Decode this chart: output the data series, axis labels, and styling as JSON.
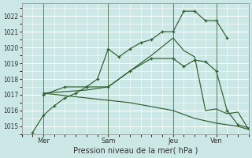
{
  "title": "",
  "xlabel": "Pression niveau de la mer( hPa )",
  "ylim": [
    1014.5,
    1022.8
  ],
  "yticks": [
    1015,
    1016,
    1017,
    1018,
    1019,
    1020,
    1021,
    1022
  ],
  "bg_color": "#cce8e6",
  "grid_color": "#ffffff",
  "line_color": "#2d5e2d",
  "xtick_labels": [
    "Mer",
    "Sam",
    "Jeu",
    "Ven"
  ],
  "xtick_positions": [
    1,
    4,
    7,
    9
  ],
  "xlim": [
    0,
    10.5
  ],
  "lines": [
    {
      "x": [
        0.5,
        1.0,
        1.5,
        2.0,
        2.5,
        3.0,
        3.5,
        4.0,
        4.5,
        5.0,
        5.5,
        6.0,
        6.5,
        7.0,
        7.5,
        8.0,
        8.5,
        9.0,
        9.5,
        10.0
      ],
      "y": [
        1014.6,
        1015.7,
        1016.3,
        1016.8,
        1017.1,
        1017.5,
        1018.0,
        1019.9,
        1019.4,
        1019.9,
        1020.3,
        1020.5,
        1021.0,
        1021.0,
        1022.3,
        1022.3,
        1021.7,
        1021.7,
        1020.6,
        null
      ],
      "style": "-",
      "marker": "+"
    },
    {
      "x": [
        1.0,
        2.0,
        3.0,
        4.0,
        5.0,
        6.0,
        7.0,
        7.5,
        8.0,
        8.5,
        9.0,
        9.5,
        10.0,
        10.5
      ],
      "y": [
        1017.0,
        1017.5,
        1017.5,
        1017.5,
        1018.5,
        1019.3,
        1019.3,
        1018.8,
        1019.2,
        1019.1,
        1018.5,
        1016.0,
        1015.1,
        1014.9
      ],
      "style": "-",
      "marker": "+"
    },
    {
      "x": [
        1.0,
        3.0,
        4.0,
        5.0,
        6.0,
        7.0,
        7.5,
        8.0,
        8.5,
        9.0,
        9.5,
        10.0,
        10.5
      ],
      "y": [
        1017.1,
        1017.3,
        1017.5,
        1018.5,
        1019.5,
        1020.6,
        1019.8,
        1019.4,
        1016.0,
        1016.1,
        1015.8,
        1015.9,
        1014.8
      ],
      "style": "-",
      "marker": null
    },
    {
      "x": [
        1.0,
        3.0,
        5.0,
        7.0,
        8.0,
        9.0,
        10.0,
        10.5
      ],
      "y": [
        1017.1,
        1016.8,
        1016.5,
        1016.0,
        1015.5,
        1015.2,
        1015.0,
        1014.8
      ],
      "style": "-",
      "marker": null
    }
  ],
  "total_x": 10.5
}
